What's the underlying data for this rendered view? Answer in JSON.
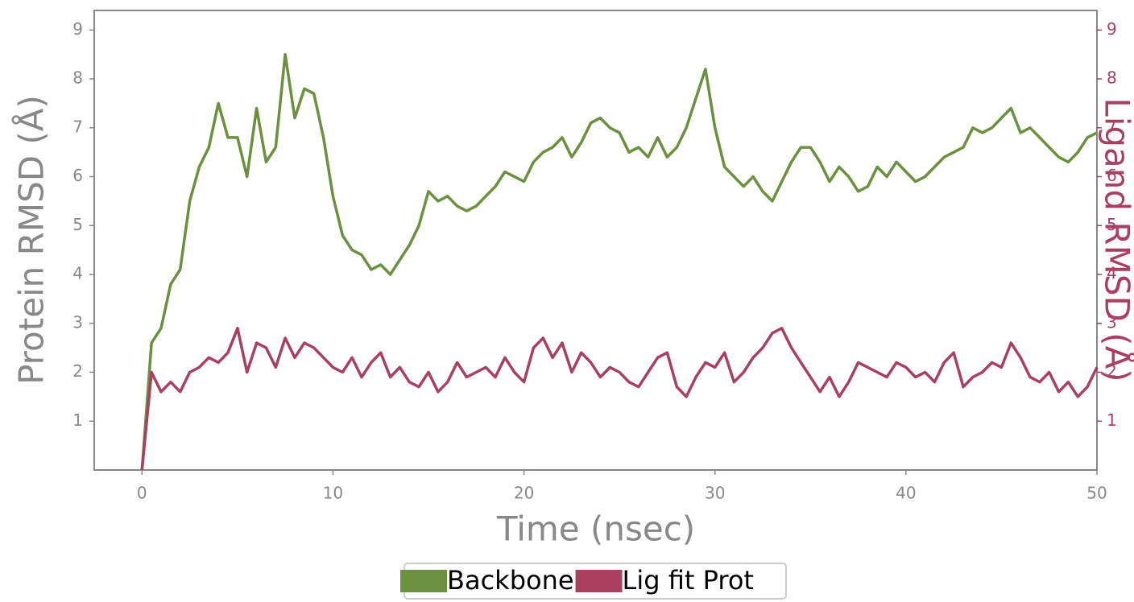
{
  "chart_data": {
    "type": "line",
    "x_label": "Time (nsec)",
    "y_label": "Protein RMSD (Å)",
    "y2_label": "Ligand RMSD (Å)",
    "x": [
      0,
      0.5,
      1,
      1.5,
      2,
      2.5,
      3,
      3.5,
      4,
      4.5,
      5,
      5.5,
      6,
      6.5,
      7,
      7.5,
      8,
      8.5,
      9,
      9.5,
      10,
      10.5,
      11,
      11.5,
      12,
      12.5,
      13,
      13.5,
      14,
      14.5,
      15,
      15.5,
      16,
      16.5,
      17,
      17.5,
      18,
      18.5,
      19,
      19.5,
      20,
      20.5,
      21,
      21.5,
      22,
      22.5,
      23,
      23.5,
      24,
      24.5,
      25,
      25.5,
      26,
      26.5,
      27,
      27.5,
      28,
      28.5,
      29,
      29.5,
      30,
      30.5,
      31,
      31.5,
      32,
      32.5,
      33,
      33.5,
      34,
      34.5,
      35,
      35.5,
      36,
      36.5,
      37,
      37.5,
      38,
      38.5,
      39,
      39.5,
      40,
      40.5,
      41,
      41.5,
      42,
      42.5,
      43,
      43.5,
      44,
      44.5,
      45,
      45.5,
      46,
      46.5,
      47,
      47.5,
      48,
      48.5,
      49,
      49.5,
      50
    ],
    "series": [
      {
        "name": "Backbone",
        "color": "#6a9040",
        "axis": "y",
        "values": [
          0,
          2.6,
          2.9,
          3.8,
          4.1,
          5.5,
          6.2,
          6.6,
          7.5,
          6.8,
          6.8,
          6.0,
          7.4,
          6.3,
          6.6,
          8.5,
          7.2,
          7.8,
          7.7,
          6.8,
          5.6,
          4.8,
          4.5,
          4.4,
          4.1,
          4.2,
          4.0,
          4.3,
          4.6,
          5.0,
          5.7,
          5.5,
          5.6,
          5.4,
          5.3,
          5.4,
          5.6,
          5.8,
          6.1,
          6.0,
          5.9,
          6.3,
          6.5,
          6.6,
          6.8,
          6.4,
          6.7,
          7.1,
          7.2,
          7.0,
          6.9,
          6.5,
          6.6,
          6.4,
          6.8,
          6.4,
          6.6,
          7.0,
          7.6,
          8.2,
          7.0,
          6.2,
          6.0,
          5.8,
          6.0,
          5.7,
          5.5,
          5.9,
          6.3,
          6.6,
          6.6,
          6.3,
          5.9,
          6.2,
          6.0,
          5.7,
          5.8,
          6.2,
          6.0,
          6.3,
          6.1,
          5.9,
          6.0,
          6.2,
          6.4,
          6.5,
          6.6,
          7.0,
          6.9,
          7.0,
          7.2,
          7.4,
          6.9,
          7.0,
          6.8,
          6.6,
          6.4,
          6.3,
          6.5,
          6.8,
          6.9
        ]
      },
      {
        "name": "Lig fit Prot",
        "color": "#a8405f",
        "axis": "y2",
        "values": [
          0,
          2.0,
          1.6,
          1.8,
          1.6,
          2.0,
          2.1,
          2.3,
          2.2,
          2.4,
          2.9,
          2.0,
          2.6,
          2.5,
          2.1,
          2.7,
          2.3,
          2.6,
          2.5,
          2.3,
          2.1,
          2.0,
          2.3,
          1.9,
          2.2,
          2.4,
          1.9,
          2.1,
          1.8,
          1.7,
          2.0,
          1.6,
          1.8,
          2.2,
          1.9,
          2.0,
          2.1,
          1.9,
          2.3,
          2.0,
          1.8,
          2.5,
          2.7,
          2.3,
          2.6,
          2.0,
          2.4,
          2.2,
          1.9,
          2.1,
          2.0,
          1.8,
          1.7,
          2.0,
          2.3,
          2.4,
          1.7,
          1.5,
          1.9,
          2.2,
          2.1,
          2.4,
          1.8,
          2.0,
          2.3,
          2.5,
          2.8,
          2.9,
          2.5,
          2.2,
          1.9,
          1.6,
          1.9,
          1.5,
          1.8,
          2.2,
          2.1,
          2.0,
          1.9,
          2.2,
          2.1,
          1.9,
          2.0,
          1.8,
          2.2,
          2.4,
          1.7,
          1.9,
          2.0,
          2.2,
          2.1,
          2.6,
          2.3,
          1.9,
          1.8,
          2.0,
          1.6,
          1.8,
          1.5,
          1.7,
          2.1
        ]
      }
    ],
    "xlim": [
      -2.5,
      50
    ],
    "xticks": [
      0,
      10,
      20,
      30,
      40,
      50
    ],
    "ylim": [
      0,
      9.4
    ],
    "yticks": [
      1,
      2,
      3,
      4,
      5,
      6,
      7,
      8,
      9
    ],
    "y2lim": [
      0,
      9.4
    ],
    "y2ticks": [
      1,
      2,
      3,
      4,
      5,
      6,
      7,
      8,
      9
    ],
    "legend": "lower center"
  }
}
